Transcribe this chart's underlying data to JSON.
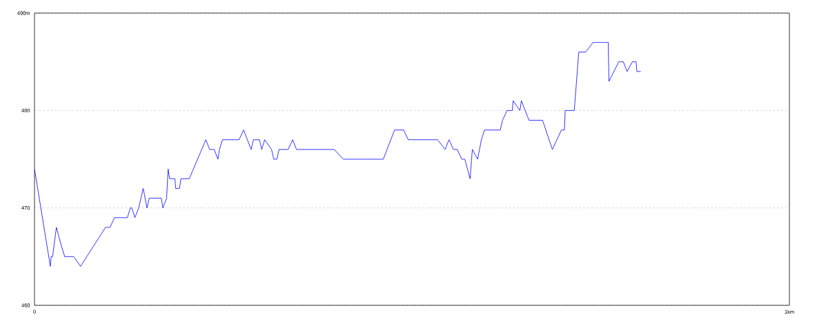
{
  "chart_data": {
    "type": "line",
    "xlim": [
      0,
      1
    ],
    "ylim": [
      460,
      490
    ],
    "xticks": [
      0,
      {
        "value": 1,
        "label": "1km"
      }
    ],
    "yticks": [
      460,
      470,
      480,
      {
        "value": 490,
        "label": "490m"
      }
    ],
    "grid": "y",
    "marker": "none",
    "line_style": "solid",
    "series": [
      {
        "color": "#0000ff",
        "x": [
          0.0,
          0.021,
          0.022,
          0.024,
          0.029,
          0.036,
          0.04,
          0.052,
          0.061,
          0.094,
          0.1,
          0.106,
          0.123,
          0.127,
          0.129,
          0.133,
          0.138,
          0.144,
          0.149,
          0.152,
          0.168,
          0.17,
          0.175,
          0.177,
          0.179,
          0.186,
          0.187,
          0.192,
          0.194,
          0.205,
          0.227,
          0.232,
          0.238,
          0.243,
          0.245,
          0.249,
          0.271,
          0.277,
          0.287,
          0.29,
          0.298,
          0.301,
          0.305,
          0.314,
          0.317,
          0.321,
          0.324,
          0.336,
          0.342,
          0.347,
          0.397,
          0.409,
          0.462,
          0.477,
          0.489,
          0.495,
          0.534,
          0.544,
          0.549,
          0.555,
          0.56,
          0.566,
          0.57,
          0.577,
          0.58,
          0.587,
          0.592,
          0.596,
          0.617,
          0.62,
          0.626,
          0.633,
          0.634,
          0.643,
          0.645,
          0.655,
          0.673,
          0.686,
          0.698,
          0.702,
          0.703,
          0.715,
          0.718,
          0.721,
          0.73,
          0.74,
          0.76,
          0.761,
          0.774,
          0.78,
          0.785,
          0.792,
          0.797,
          0.798,
          0.803
        ],
        "values": [
          474,
          464,
          465,
          465,
          468,
          466,
          465,
          465,
          464,
          468,
          468,
          469,
          469,
          470,
          470,
          469,
          470,
          472,
          470,
          471,
          471,
          470,
          471,
          474,
          473,
          473,
          472,
          472,
          473,
          473,
          477,
          476,
          476,
          475,
          476,
          477,
          477,
          478,
          476,
          477,
          477,
          476,
          477,
          476,
          475,
          475,
          476,
          476,
          477,
          476,
          476,
          475,
          475,
          478,
          478,
          477,
          477,
          476,
          477,
          476,
          476,
          475,
          475,
          473,
          476,
          475,
          477,
          478,
          478,
          479,
          480,
          480,
          481,
          480,
          481,
          479,
          479,
          476,
          478,
          478,
          480,
          480,
          483,
          486,
          486,
          487,
          487,
          483,
          485,
          485,
          484,
          485,
          485,
          484,
          484
        ]
      }
    ]
  }
}
